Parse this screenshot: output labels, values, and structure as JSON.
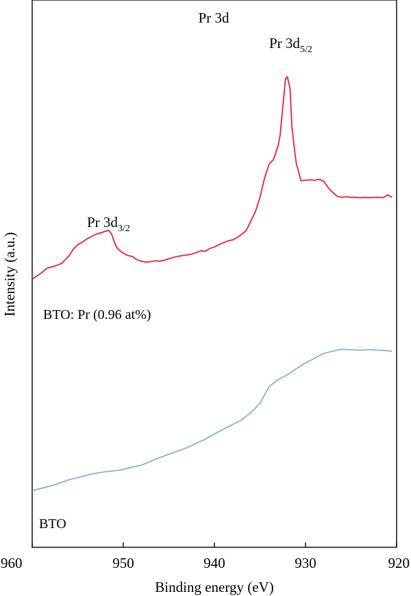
{
  "chart_data": {
    "type": "line",
    "title": "Pr 3d",
    "xlabel": "Binding energy (eV)",
    "ylabel": "Intensity (a.u.)",
    "xlim": [
      960,
      920
    ],
    "x_reversed": true,
    "ylim": [
      0,
      1
    ],
    "y_ticks_shown": false,
    "grid": false,
    "x_ticks": [
      960,
      950,
      940,
      930,
      920
    ],
    "x_tick_labels": [
      "960",
      "950",
      "940",
      "930",
      "920"
    ],
    "annotations": [
      {
        "base": "Pr 3d",
        "sub": "5/2",
        "x": 932
      },
      {
        "base": "Pr 3d",
        "sub": "3/2",
        "x": 952
      }
    ],
    "series": [
      {
        "name": "BTO: Pr (0.96 at%)",
        "color": "#e8212f",
        "x": [
          960,
          959,
          958.4,
          957.5,
          956.8,
          956,
          955.5,
          955,
          954.5,
          954,
          953.5,
          953,
          952.5,
          952,
          951.6,
          951.3,
          951,
          950.7,
          950.3,
          950,
          949.5,
          949,
          948.5,
          948,
          947.5,
          947,
          946.5,
          946,
          945.5,
          945,
          944.5,
          944,
          943.5,
          943,
          942.5,
          942,
          941.5,
          941,
          940.5,
          940,
          939.5,
          939,
          938.5,
          938,
          937.5,
          937,
          936.5,
          936,
          935.5,
          935,
          934.5,
          934,
          933.5,
          933,
          932.8,
          932.5,
          932.2,
          932,
          931.7,
          931.5,
          931.2,
          931,
          930.7,
          930.5,
          930,
          929.5,
          929,
          928.5,
          928,
          927.5,
          927,
          926.5,
          926,
          925.5,
          925,
          924.5,
          924,
          923.5,
          923,
          922.5,
          922,
          921.5,
          921,
          920.5
        ],
        "y": [
          0.497,
          0.51,
          0.52,
          0.525,
          0.53,
          0.545,
          0.56,
          0.57,
          0.575,
          0.582,
          0.587,
          0.592,
          0.595,
          0.598,
          0.6,
          0.593,
          0.577,
          0.563,
          0.556,
          0.552,
          0.547,
          0.545,
          0.538,
          0.535,
          0.533,
          0.534,
          0.536,
          0.535,
          0.537,
          0.54,
          0.543,
          0.545,
          0.547,
          0.548,
          0.55,
          0.553,
          0.557,
          0.556,
          0.562,
          0.565,
          0.57,
          0.574,
          0.578,
          0.58,
          0.585,
          0.592,
          0.6,
          0.62,
          0.64,
          0.67,
          0.71,
          0.74,
          0.75,
          0.78,
          0.8,
          0.86,
          0.92,
          0.925,
          0.9,
          0.82,
          0.77,
          0.74,
          0.72,
          0.705,
          0.706,
          0.707,
          0.706,
          0.708,
          0.704,
          0.69,
          0.68,
          0.672,
          0.67,
          0.671,
          0.67,
          0.67,
          0.669,
          0.67,
          0.669,
          0.67,
          0.67,
          0.669,
          0.675,
          0.67
        ]
      },
      {
        "name": "BTO",
        "color": "#7fb3d9",
        "x": [
          960,
          959,
          958,
          957,
          956,
          955,
          954,
          953,
          952,
          951,
          950,
          949,
          948,
          947,
          946,
          945,
          944,
          943,
          942,
          941,
          940,
          939,
          938,
          937,
          936,
          935,
          934,
          933,
          932,
          931,
          930,
          929,
          928,
          927,
          926,
          925,
          924,
          923,
          922,
          921,
          920.5
        ],
        "y": [
          0.05,
          0.055,
          0.06,
          0.066,
          0.073,
          0.078,
          0.083,
          0.087,
          0.09,
          0.092,
          0.095,
          0.1,
          0.104,
          0.112,
          0.12,
          0.127,
          0.134,
          0.141,
          0.15,
          0.159,
          0.17,
          0.18,
          0.19,
          0.2,
          0.215,
          0.235,
          0.27,
          0.285,
          0.295,
          0.308,
          0.32,
          0.33,
          0.34,
          0.345,
          0.349,
          0.348,
          0.347,
          0.348,
          0.347,
          0.346,
          0.344
        ]
      }
    ]
  }
}
